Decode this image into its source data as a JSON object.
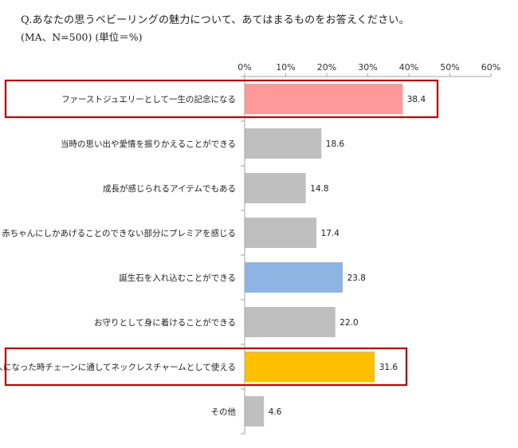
{
  "chart_data": {
    "type": "bar",
    "orientation": "horizontal",
    "title": "Q.あなたの思うベビーリングの魅力について、あてはまるものをお答えください。",
    "subtitle": "(MA、N=500) (単位＝%)",
    "categories": [
      "ファーストジュエリーとして一生の記念になる",
      "当時の思い出や愛情を振りかえることができる",
      "成長が感じられるアイテムでもある",
      "赤ちゃんにしかあげることのできない部分にプレミアを感じる",
      "誕生石を入れ込むことができる",
      "お守りとして身に着けることができる",
      "大人になった時チェーンに通してネックレスチャームとして使える",
      "その他"
    ],
    "values": [
      38.4,
      18.6,
      14.8,
      17.4,
      23.8,
      22.0,
      31.6,
      4.6
    ],
    "value_labels": [
      "38.4",
      "18.6",
      "14.8",
      "17.4",
      "23.8",
      "22.0",
      "31.6",
      "4.6"
    ],
    "x_ticks": [
      0,
      10,
      20,
      30,
      40,
      50,
      60
    ],
    "x_tick_labels": [
      "0%",
      "10%",
      "20%",
      "30%",
      "40%",
      "50%",
      "60%"
    ],
    "xlim": [
      0,
      60
    ],
    "grid": false,
    "legend": "none",
    "bar_colors": [
      "#ff9999",
      "#bfbfbf",
      "#bfbfbf",
      "#bfbfbf",
      "#8eb4e3",
      "#bfbfbf",
      "#ffc000",
      "#bfbfbf"
    ],
    "highlight_boxes": [
      0,
      6
    ],
    "highlight_color": "#cc0000",
    "axis_color": "#a6a6a6"
  }
}
